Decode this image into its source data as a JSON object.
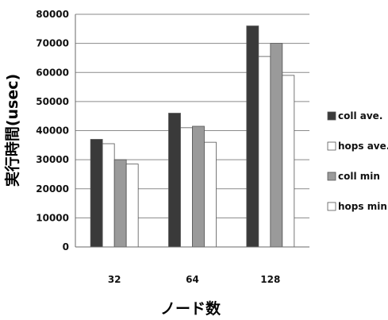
{
  "chart_data": {
    "type": "bar",
    "title": "",
    "xlabel": "ノード数",
    "ylabel": "実行時間(usec)",
    "categories": [
      "32",
      "64",
      "128"
    ],
    "ylim": [
      0,
      80000
    ],
    "yticks": [
      "0",
      "10000",
      "20000",
      "30000",
      "40000",
      "50000",
      "60000",
      "70000",
      "80000"
    ],
    "grid": true,
    "legend_position": "right",
    "series": [
      {
        "name": "coll ave.",
        "color": "#3a3a3a",
        "values": [
          37000,
          46000,
          76000
        ]
      },
      {
        "name": "hops ave.",
        "color": "#ffffff",
        "values": [
          35500,
          41000,
          65500
        ]
      },
      {
        "name": "coll min",
        "color": "#9a9a9a",
        "values": [
          30000,
          41500,
          70000
        ]
      },
      {
        "name": "hops min",
        "color": "#ffffff",
        "values": [
          28500,
          36000,
          59000
        ]
      }
    ]
  }
}
